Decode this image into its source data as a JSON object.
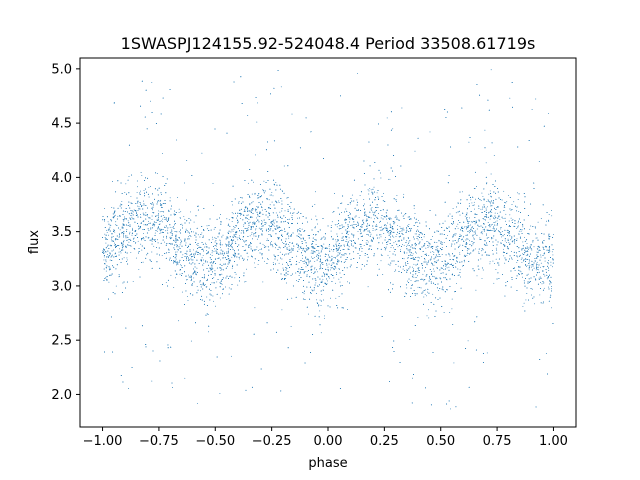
{
  "chart_data": {
    "type": "scatter",
    "title": "1SWASPJ124155.92-524048.4 Period 33508.61719s",
    "xlabel": "phase",
    "ylabel": "flux",
    "xlim": [
      -1.1,
      1.1
    ],
    "ylim": [
      1.7,
      5.1
    ],
    "xticks": [
      {
        "value": -1.0,
        "label": "−1.00"
      },
      {
        "value": -0.75,
        "label": "−0.75"
      },
      {
        "value": -0.5,
        "label": "−0.50"
      },
      {
        "value": -0.25,
        "label": "−0.25"
      },
      {
        "value": 0.0,
        "label": "0.00"
      },
      {
        "value": 0.25,
        "label": "0.25"
      },
      {
        "value": 0.5,
        "label": "0.50"
      },
      {
        "value": 0.75,
        "label": "0.75"
      },
      {
        "value": 1.0,
        "label": "1.00"
      }
    ],
    "yticks": [
      {
        "value": 2.0,
        "label": "2.0"
      },
      {
        "value": 2.5,
        "label": "2.5"
      },
      {
        "value": 3.0,
        "label": "3.0"
      },
      {
        "value": 3.5,
        "label": "3.5"
      },
      {
        "value": 4.0,
        "label": "4.0"
      },
      {
        "value": 4.5,
        "label": "4.5"
      },
      {
        "value": 5.0,
        "label": "5.0"
      }
    ],
    "grid": false,
    "marker_color": "#1f77b4",
    "series": [
      {
        "x": [
          -1.0,
          -0.95,
          -0.9,
          -0.85,
          -0.8,
          -0.75,
          -0.7,
          -0.65,
          -0.6,
          -0.55,
          -0.5,
          -0.45,
          -0.4,
          -0.35,
          -0.3,
          -0.25,
          -0.2,
          -0.15,
          -0.1,
          -0.05,
          0.0,
          0.05,
          0.1,
          0.15,
          0.2,
          0.25,
          0.3,
          0.35,
          0.4,
          0.45,
          0.5,
          0.55,
          0.6,
          0.65,
          0.7,
          0.75,
          0.8,
          0.85,
          0.9,
          0.95,
          1.0
        ],
        "y": [
          3.3,
          3.38,
          3.48,
          3.56,
          3.6,
          3.57,
          3.48,
          3.36,
          3.25,
          3.18,
          3.2,
          3.3,
          3.43,
          3.53,
          3.57,
          3.54,
          3.45,
          3.34,
          3.24,
          3.19,
          3.22,
          3.32,
          3.44,
          3.54,
          3.58,
          3.55,
          3.46,
          3.34,
          3.23,
          3.18,
          3.21,
          3.31,
          3.43,
          3.53,
          3.58,
          3.55,
          3.45,
          3.34,
          3.25,
          3.2,
          3.22
        ],
        "scatter_sigma": 0.2,
        "approx_point_count": 9000
      }
    ]
  }
}
